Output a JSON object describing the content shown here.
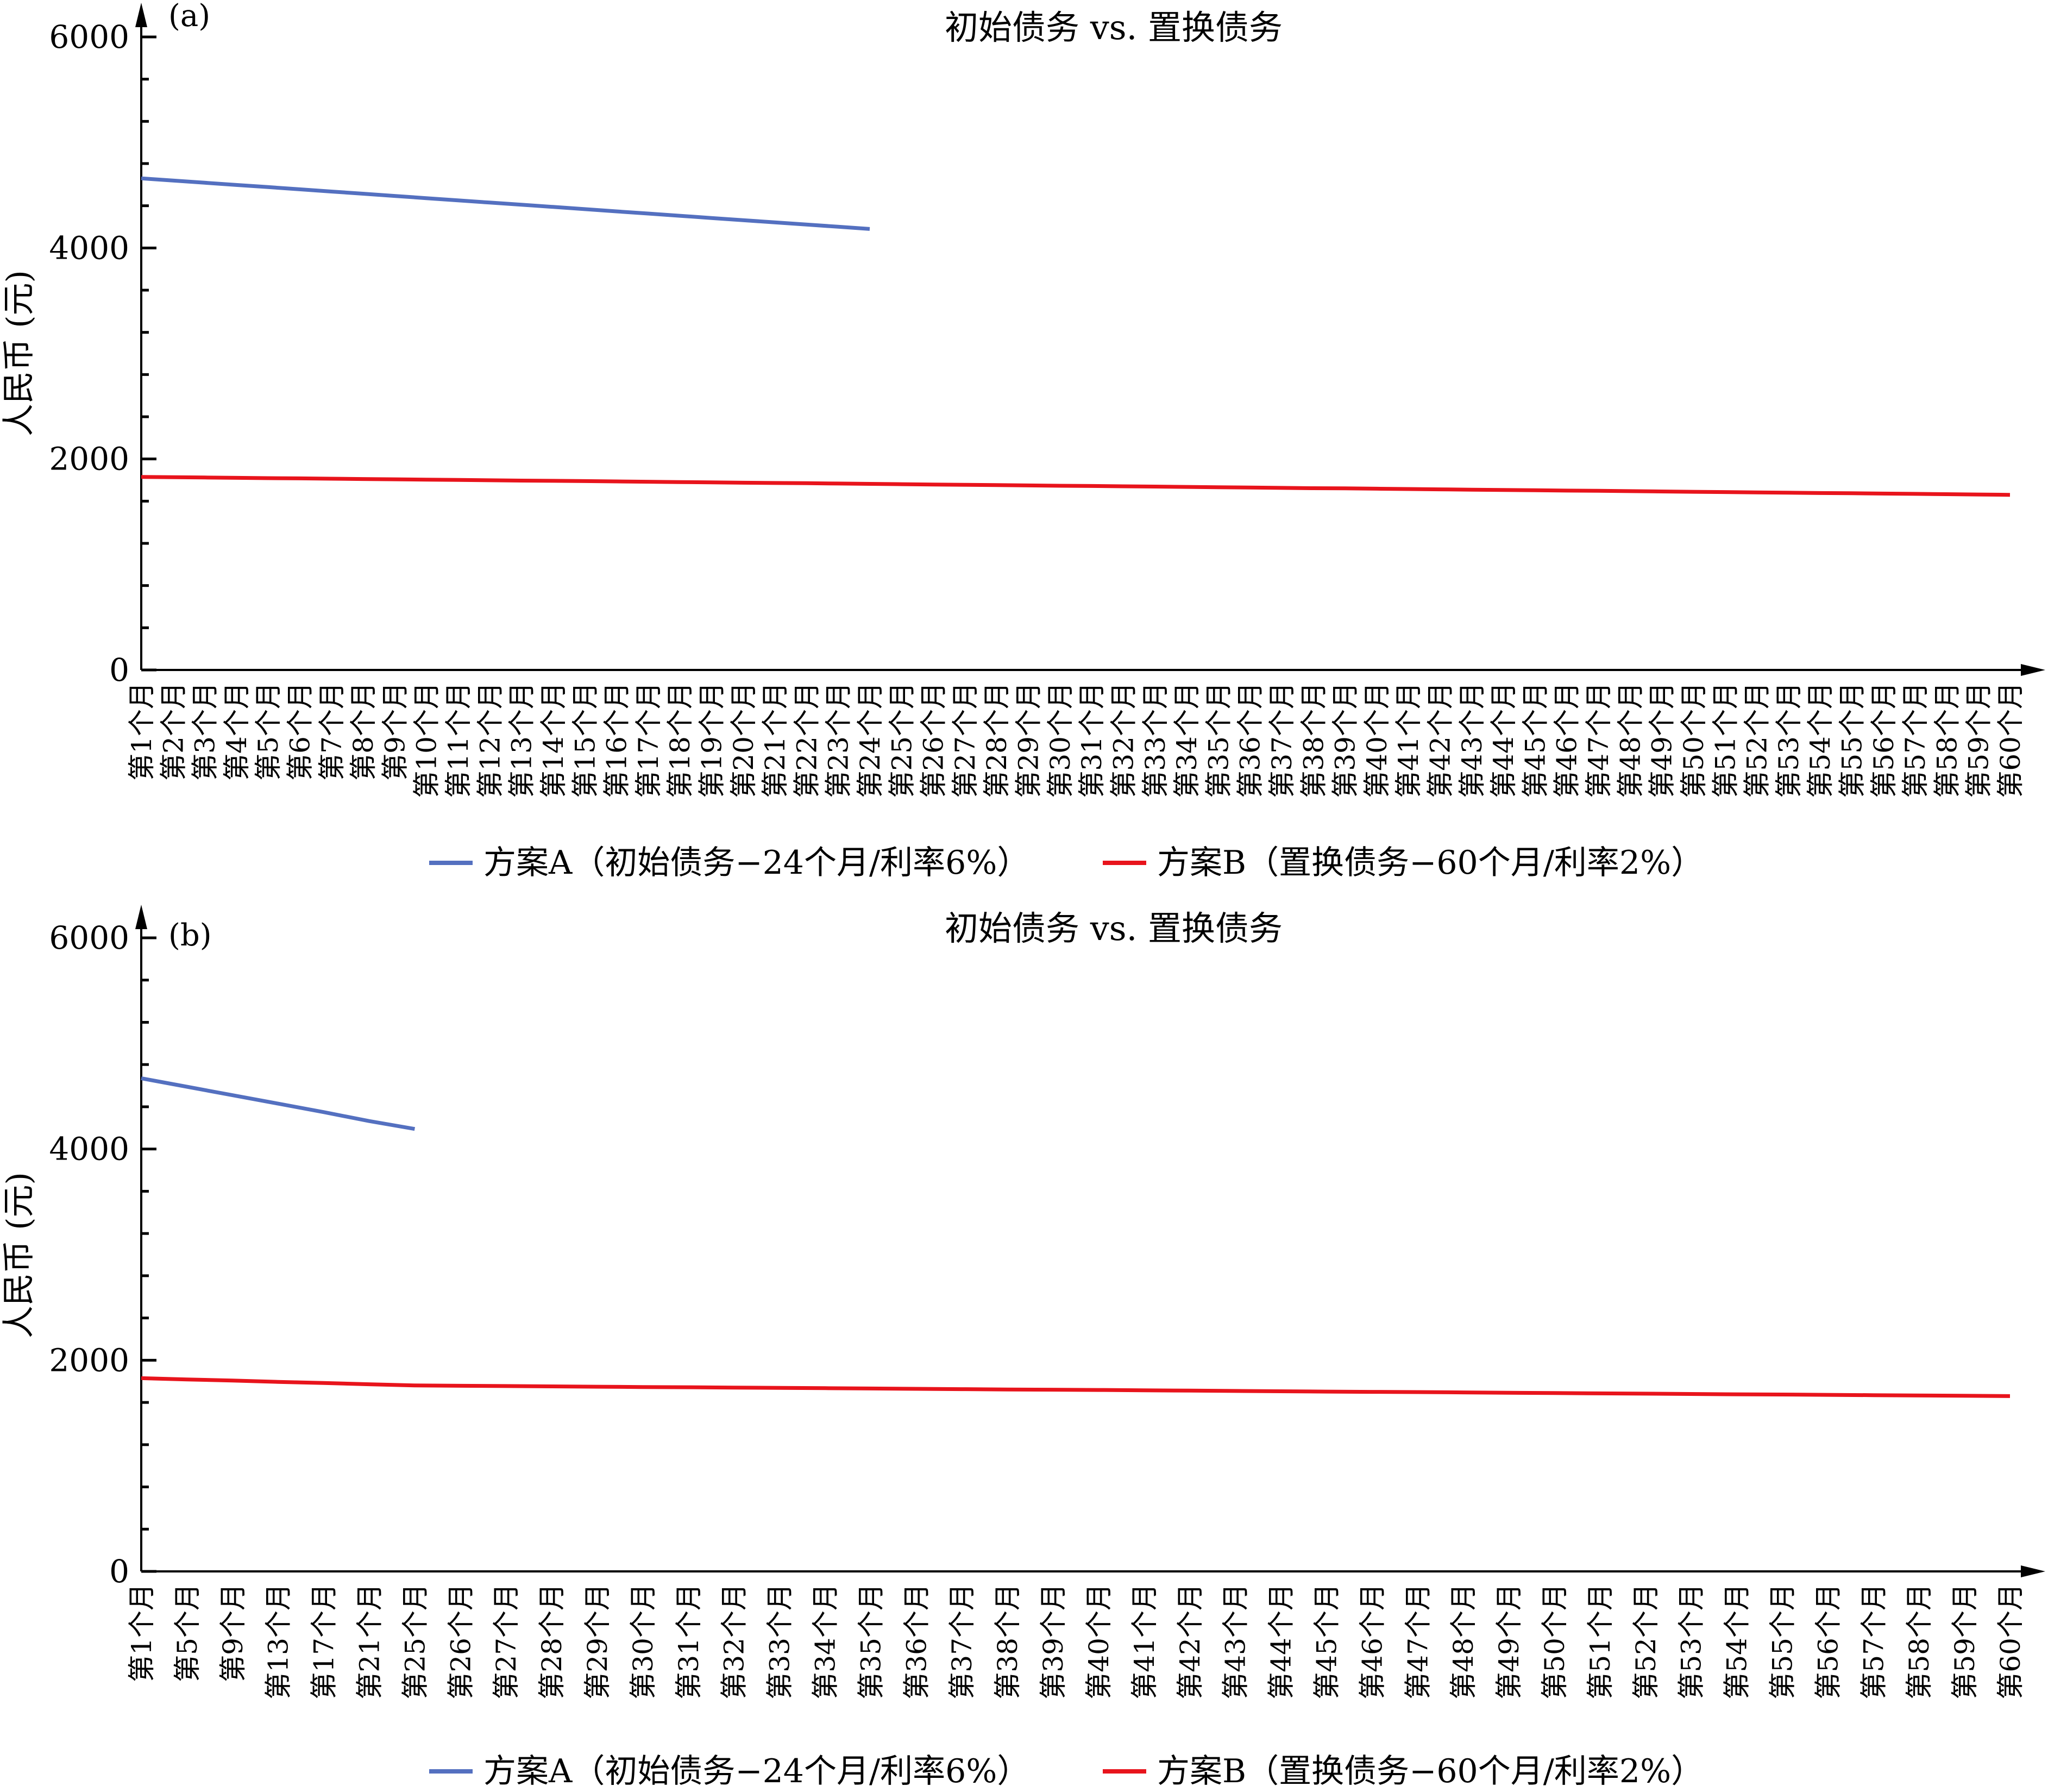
{
  "colors": {
    "series_a": "#5470c0",
    "series_b": "#e8141c",
    "axis": "#000000"
  },
  "chart_data": [
    {
      "type": "line",
      "panel": "(a)",
      "title": "初始债务 vs. 置换债务",
      "xlabel": "",
      "ylabel": "人民币 (元)",
      "ylim": [
        0,
        6000
      ],
      "yticks": [
        0,
        2000,
        4000,
        6000
      ],
      "grid": false,
      "legend_position": "bottom",
      "categories": [
        "第1个月",
        "第2个月",
        "第3个月",
        "第4个月",
        "第5个月",
        "第6个月",
        "第7个月",
        "第8个月",
        "第9个月",
        "第10个月",
        "第11个月",
        "第12个月",
        "第13个月",
        "第14个月",
        "第15个月",
        "第16个月",
        "第17个月",
        "第18个月",
        "第19个月",
        "第20个月",
        "第21个月",
        "第22个月",
        "第23个月",
        "第24个月",
        "第25个月",
        "第26个月",
        "第27个月",
        "第28个月",
        "第29个月",
        "第30个月",
        "第31个月",
        "第32个月",
        "第33个月",
        "第34个月",
        "第35个月",
        "第36个月",
        "第37个月",
        "第38个月",
        "第39个月",
        "第40个月",
        "第41个月",
        "第42个月",
        "第43个月",
        "第44个月",
        "第45个月",
        "第46个月",
        "第47个月",
        "第48个月",
        "第49个月",
        "第50个月",
        "第51个月",
        "第52个月",
        "第53个月",
        "第54个月",
        "第55个月",
        "第56个月",
        "第57个月",
        "第58个月",
        "第59个月",
        "第60个月"
      ],
      "series": [
        {
          "name": "方案A（初始债务−24个月/利率6%）",
          "color_key": "series_a",
          "values": [
            4660,
            4639,
            4618,
            4597,
            4577,
            4556,
            4535,
            4514,
            4493,
            4472,
            4451,
            4430,
            4410,
            4389,
            4368,
            4347,
            4326,
            4305,
            4284,
            4263,
            4243,
            4222,
            4201,
            4180,
            null,
            null,
            null,
            null,
            null,
            null,
            null,
            null,
            null,
            null,
            null,
            null,
            null,
            null,
            null,
            null,
            null,
            null,
            null,
            null,
            null,
            null,
            null,
            null,
            null,
            null,
            null,
            null,
            null,
            null,
            null,
            null,
            null,
            null,
            null,
            null
          ]
        },
        {
          "name": "方案B（置换债务−60个月/利率2%）",
          "color_key": "series_b",
          "values": [
            1830,
            1827,
            1824,
            1821,
            1818,
            1816,
            1813,
            1810,
            1807,
            1804,
            1801,
            1798,
            1795,
            1793,
            1790,
            1787,
            1784,
            1781,
            1778,
            1775,
            1772,
            1770,
            1767,
            1764,
            1761,
            1758,
            1755,
            1752,
            1749,
            1746,
            1744,
            1741,
            1738,
            1735,
            1732,
            1729,
            1726,
            1723,
            1721,
            1718,
            1715,
            1712,
            1709,
            1706,
            1703,
            1700,
            1698,
            1695,
            1692,
            1689,
            1686,
            1683,
            1680,
            1677,
            1675,
            1672,
            1669,
            1666,
            1663,
            1660
          ]
        }
      ]
    },
    {
      "type": "line",
      "panel": "(b)",
      "title": "初始债务 vs. 置换债务",
      "xlabel": "",
      "ylabel": "人民币 (元)",
      "ylim": [
        0,
        6000
      ],
      "yticks": [
        0,
        2000,
        4000,
        6000
      ],
      "grid": false,
      "legend_position": "bottom",
      "categories": [
        "第1个月",
        "第5个月",
        "第9个月",
        "第13个月",
        "第17个月",
        "第21个月",
        "第25个月",
        "第26个月",
        "第27个月",
        "第28个月",
        "第29个月",
        "第30个月",
        "第31个月",
        "第32个月",
        "第33个月",
        "第34个月",
        "第35个月",
        "第36个月",
        "第37个月",
        "第38个月",
        "第39个月",
        "第40个月",
        "第41个月",
        "第42个月",
        "第43个月",
        "第44个月",
        "第45个月",
        "第46个月",
        "第47个月",
        "第48个月",
        "第49个月",
        "第50个月",
        "第51个月",
        "第52个月",
        "第53个月",
        "第54个月",
        "第55个月",
        "第56个月",
        "第57个月",
        "第58个月",
        "第59个月",
        "第60个月"
      ],
      "series": [
        {
          "name": "方案A（初始债务−24个月/利率6%）",
          "color_key": "series_a",
          "values": [
            4670,
            4590,
            4510,
            4430,
            4350,
            4265,
            4190,
            null,
            null,
            null,
            null,
            null,
            null,
            null,
            null,
            null,
            null,
            null,
            null,
            null,
            null,
            null,
            null,
            null,
            null,
            null,
            null,
            null,
            null,
            null,
            null,
            null,
            null,
            null,
            null,
            null,
            null,
            null,
            null,
            null,
            null,
            null
          ]
        },
        {
          "name": "方案B（置换债务−60个月/利率2%）",
          "color_key": "series_b",
          "values": [
            1830,
            1818,
            1807,
            1795,
            1784,
            1772,
            1761,
            1758,
            1755,
            1752,
            1749,
            1746,
            1744,
            1741,
            1738,
            1735,
            1732,
            1729,
            1726,
            1723,
            1721,
            1718,
            1715,
            1712,
            1709,
            1706,
            1703,
            1700,
            1698,
            1695,
            1692,
            1689,
            1686,
            1683,
            1680,
            1677,
            1675,
            1672,
            1669,
            1666,
            1663,
            1660
          ]
        }
      ]
    }
  ]
}
